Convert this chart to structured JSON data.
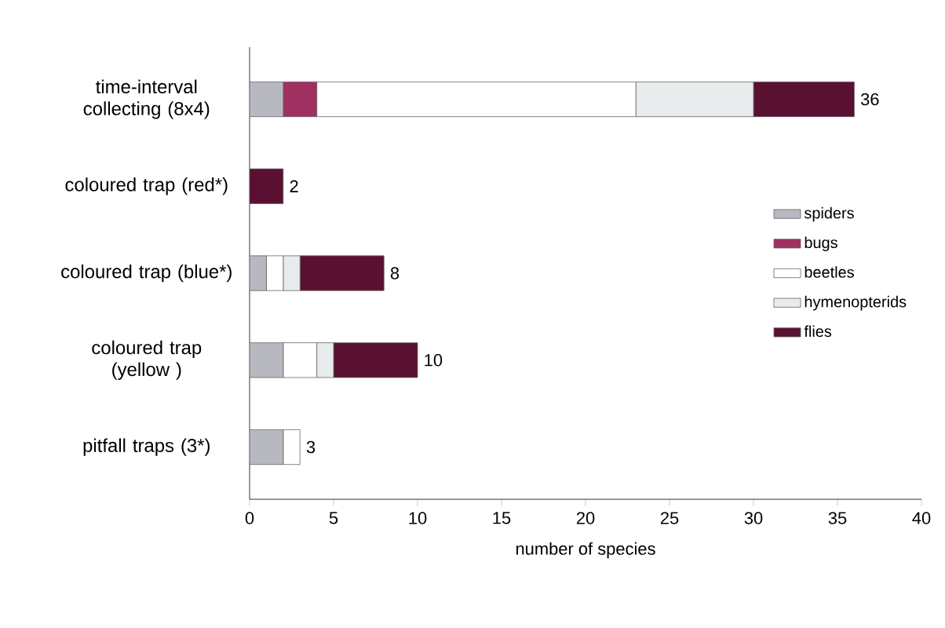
{
  "chart_data": {
    "type": "bar",
    "orientation": "horizontal",
    "stacked": true,
    "xlabel": "number of species",
    "categories": [
      "time-interval collecting (8x4)",
      "coloured trap (red*)",
      "coloured trap (blue*)",
      "coloured trap (yellow )",
      "pitfall traps (3*)"
    ],
    "series": [
      {
        "name": "spiders",
        "color": "#b8b8c0",
        "values": [
          2,
          0,
          1,
          2,
          2
        ]
      },
      {
        "name": "bugs",
        "color": "#a03060",
        "values": [
          2,
          0,
          0,
          0,
          0
        ]
      },
      {
        "name": "beetles",
        "color": "#ffffff",
        "values": [
          19,
          0,
          1,
          2,
          1
        ]
      },
      {
        "name": "hymenopterids",
        "color": "#e8ecec",
        "values": [
          7,
          0,
          1,
          1,
          0
        ]
      },
      {
        "name": "flies",
        "color": "#5a1030",
        "values": [
          6,
          2,
          5,
          5,
          0
        ]
      }
    ],
    "totals": [
      "36",
      "2",
      "8",
      "10",
      "3"
    ],
    "xlim": [
      0,
      40
    ],
    "xticks": [
      0,
      5,
      10,
      15,
      20,
      25,
      30,
      35,
      40
    ],
    "grid": false,
    "legend": "right"
  }
}
